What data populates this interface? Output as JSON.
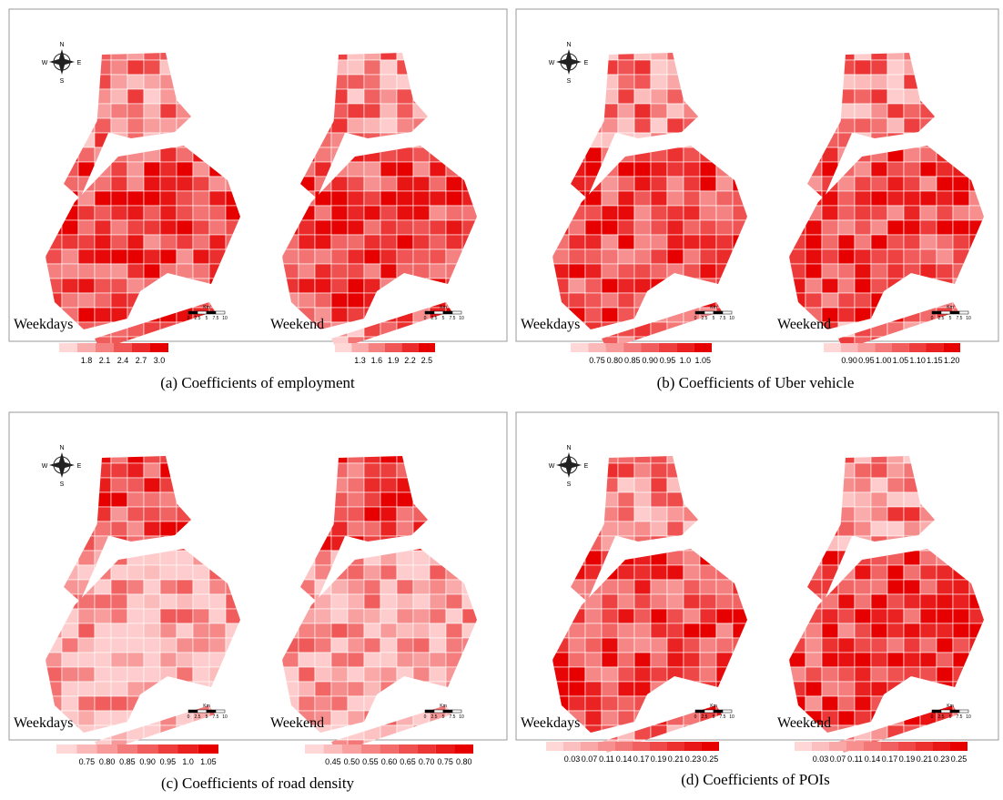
{
  "compass": {
    "n": "N",
    "s": "S",
    "e": "E",
    "w": "W"
  },
  "scale_bar": {
    "unit": "Km",
    "labels": [
      "0",
      "2.5",
      "5",
      "7.5",
      "10"
    ]
  },
  "panels": [
    {
      "caption": "(a) Coefficients of employment",
      "maps": [
        {
          "label": "Weekdays",
          "legend": [
            "1.8",
            "2.1",
            "2.4",
            "2.7",
            "3.0"
          ]
        },
        {
          "label": "Weekend",
          "legend": [
            "1.3",
            "1.6",
            "1.9",
            "2.2",
            "2.5"
          ]
        }
      ]
    },
    {
      "caption": "(b) Coefficients of Uber vehicle",
      "maps": [
        {
          "label": "Weekdays",
          "legend": [
            "0.75",
            "0.80",
            "0.85",
            "0.90",
            "0.95",
            "1.0",
            "1.05"
          ]
        },
        {
          "label": "Weekend",
          "legend": [
            "0.90",
            "0.95",
            "1.00",
            "1.05",
            "1.10",
            "1.15",
            "1.20"
          ]
        }
      ]
    },
    {
      "caption": "(c) Coefficients of road density",
      "maps": [
        {
          "label": "Weekdays",
          "legend": [
            "0.75",
            "0.80",
            "0.85",
            "0.90",
            "0.95",
            "1.0",
            "1.05"
          ]
        },
        {
          "label": "Weekend",
          "legend": [
            "0.45",
            "0.50",
            "0.55",
            "0.60",
            "0.65",
            "0.70",
            "0.75",
            "0.80"
          ]
        }
      ]
    },
    {
      "caption": "(d) Coefficients of POIs",
      "maps": [
        {
          "label": "Weekdays",
          "legend": [
            "0.03",
            "0.07",
            "0.11",
            "0.14",
            "0.17",
            "0.19",
            "0.21",
            "0.23",
            "0.25"
          ]
        },
        {
          "label": "Weekend",
          "legend": [
            "0.03",
            "0.07",
            "0.11",
            "0.14",
            "0.17",
            "0.19",
            "0.21",
            "0.23",
            "0.25"
          ]
        }
      ]
    }
  ]
}
